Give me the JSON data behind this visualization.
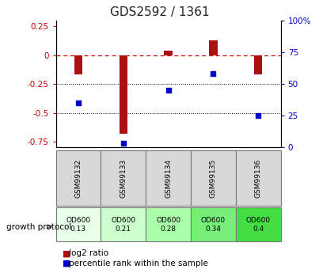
{
  "title": "GDS2592 / 1361",
  "samples": [
    "GSM99132",
    "GSM99133",
    "GSM99134",
    "GSM99135",
    "GSM99136"
  ],
  "log2_ratio": [
    -0.17,
    -0.68,
    0.04,
    0.13,
    -0.17
  ],
  "percentile_rank": [
    35,
    3,
    45,
    58,
    25
  ],
  "protocol_label": "growth protocol",
  "protocol_values": [
    "OD600\n0.13",
    "OD600\n0.21",
    "OD600\n0.28",
    "OD600\n0.34",
    "OD600\n0.4"
  ],
  "protocol_colors": [
    "#e8ffe8",
    "#ccffcc",
    "#aaffaa",
    "#77ee77",
    "#44dd44"
  ],
  "sample_bg_color": "#d8d8d8",
  "ylim_left": [
    -0.8,
    0.3
  ],
  "ylim_right": [
    0,
    100
  ],
  "yticks_left": [
    -0.75,
    -0.5,
    -0.25,
    0.0,
    0.25
  ],
  "yticks_right": [
    0,
    25,
    50,
    75,
    100
  ],
  "bar_color": "#aa1111",
  "dot_color": "#0000cc",
  "zero_line_color": "#cc0000",
  "grid_color": "#000000",
  "title_color": "#222222",
  "left_tick_color": "#cc0000",
  "right_tick_color": "#0000cc",
  "bar_width": 0.18
}
